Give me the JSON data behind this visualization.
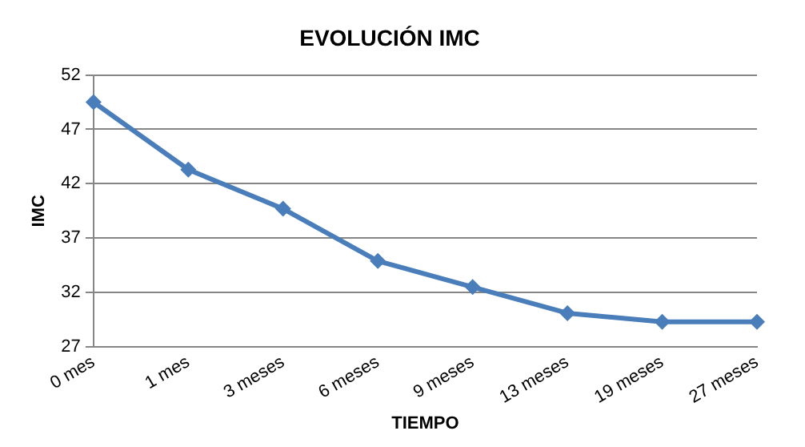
{
  "chart_data": {
    "type": "line",
    "title": "EVOLUCIÓN IMC",
    "xlabel": "TIEMPO",
    "ylabel": "IMC",
    "categories": [
      "0 mes",
      "1 mes",
      "3 meses",
      "6 meses",
      "9 meses",
      "13 meses",
      "19 meses",
      "27 meses"
    ],
    "series": [
      {
        "color": "#4a7ebb",
        "values": [
          49.5,
          43.3,
          39.7,
          34.9,
          32.5,
          30.1,
          29.3,
          29.3
        ]
      }
    ],
    "ylim": [
      27,
      52
    ],
    "yticks": [
      27,
      32,
      37,
      42,
      47,
      52
    ],
    "grid": "y",
    "legend": false,
    "marker": "diamond",
    "line_style": "solid"
  }
}
